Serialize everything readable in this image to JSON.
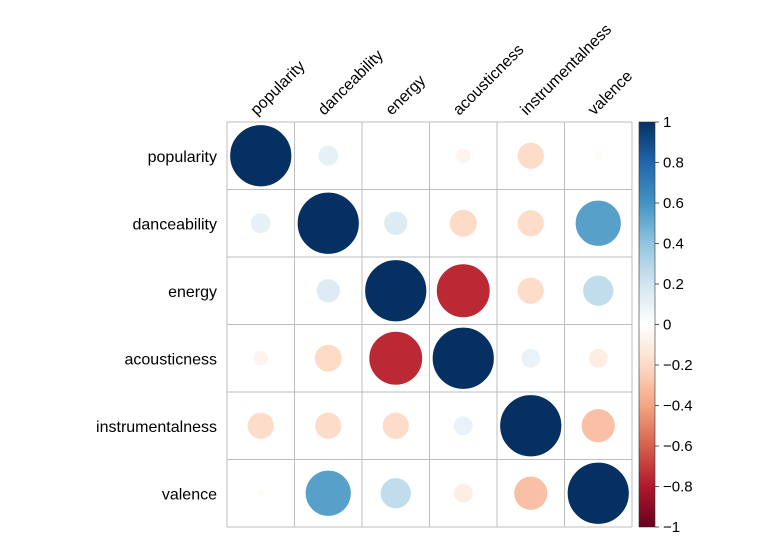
{
  "chart_data": {
    "type": "heatmap",
    "variables": [
      "popularity",
      "danceability",
      "energy",
      "acousticness",
      "instrumentalness",
      "valence"
    ],
    "matrix": [
      [
        1.0,
        0.11,
        0.0,
        -0.06,
        -0.19,
        -0.02
      ],
      [
        0.11,
        1.0,
        0.15,
        -0.2,
        -0.19,
        0.55
      ],
      [
        0.0,
        0.15,
        1.0,
        -0.75,
        -0.19,
        0.25
      ],
      [
        -0.06,
        -0.2,
        -0.75,
        1.0,
        0.1,
        -0.1
      ],
      [
        -0.19,
        -0.19,
        -0.19,
        0.1,
        1.0,
        -0.3
      ],
      [
        -0.02,
        0.55,
        0.25,
        -0.1,
        -0.3,
        1.0
      ]
    ],
    "colorbar": {
      "ticks": [
        "1",
        "0.8",
        "0.6",
        "0.4",
        "0.2",
        "0",
        "−0.2",
        "−0.4",
        "−0.6",
        "−0.8",
        "−1"
      ],
      "range": [
        -1,
        1
      ]
    },
    "colors": {
      "negative": "#67001F",
      "zero": "#FFFFFF",
      "positive": "#053061"
    },
    "grid": true
  }
}
